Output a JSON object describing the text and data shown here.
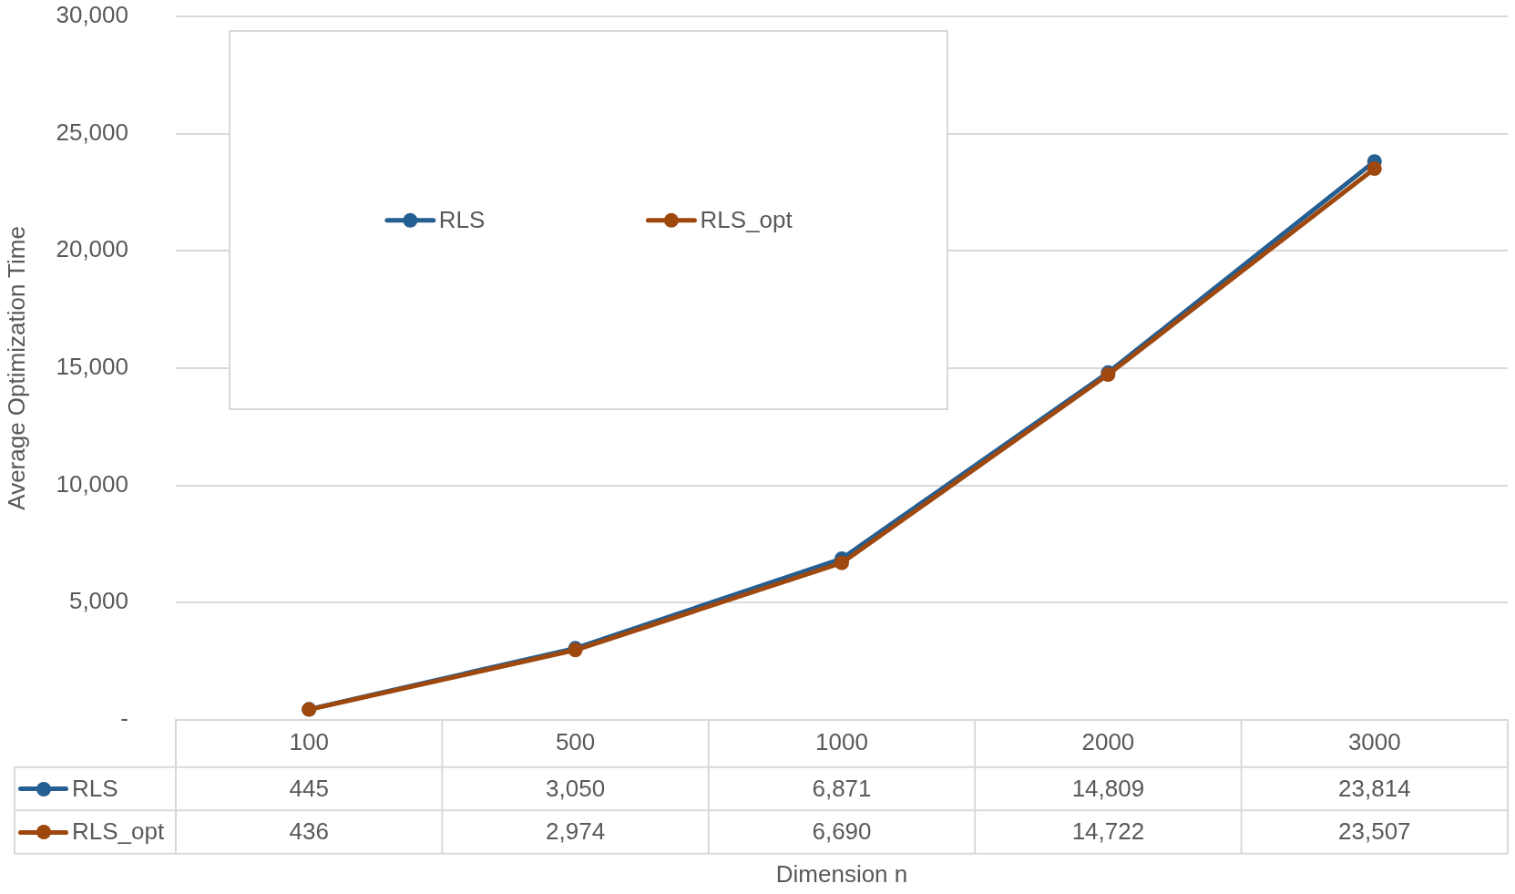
{
  "chart_data": {
    "type": "line",
    "categories": [
      "100",
      "500",
      "1000",
      "2000",
      "3000"
    ],
    "series": [
      {
        "name": "RLS",
        "color": "#255e91",
        "values": [
          445,
          3050,
          6871,
          14809,
          23814
        ],
        "value_labels": [
          "445",
          "3,050",
          "6,871",
          "14,809",
          "23,814"
        ]
      },
      {
        "name": "RLS_opt",
        "color": "#9e480e",
        "values": [
          436,
          2974,
          6690,
          14722,
          23507
        ],
        "value_labels": [
          "436",
          "2,974",
          "6,690",
          "14,722",
          "23,507"
        ]
      }
    ],
    "xlabel": "Dimension n",
    "ylabel": "Average Optimization Time",
    "ylim": [
      0,
      30000
    ],
    "yticks": [
      {
        "value": 0,
        "label": "-"
      },
      {
        "value": 5000,
        "label": "5,000"
      },
      {
        "value": 10000,
        "label": "10,000"
      },
      {
        "value": 15000,
        "label": "15,000"
      },
      {
        "value": 20000,
        "label": "20,000"
      },
      {
        "value": 25000,
        "label": "25,000"
      },
      {
        "value": 30000,
        "label": "30,000"
      }
    ],
    "grid": "y",
    "legend": "top left",
    "marker": "circle",
    "line_style": "solid"
  }
}
